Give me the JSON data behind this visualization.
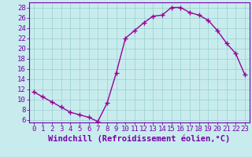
{
  "x": [
    0,
    1,
    2,
    3,
    4,
    5,
    6,
    7,
    8,
    9,
    10,
    11,
    12,
    13,
    14,
    15,
    16,
    17,
    18,
    19,
    20,
    21,
    22,
    23
  ],
  "y": [
    11.5,
    10.5,
    9.5,
    8.5,
    7.5,
    7.0,
    6.5,
    5.7,
    9.3,
    15.2,
    22.0,
    23.5,
    25.0,
    26.3,
    26.5,
    28.0,
    28.0,
    27.0,
    26.5,
    25.5,
    23.5,
    21.0,
    19.0,
    14.8
  ],
  "line_color": "#990099",
  "marker": "+",
  "marker_size": 4,
  "marker_lw": 1.0,
  "line_width": 1.0,
  "bg_color": "#c8eced",
  "grid_color": "#a0d4d4",
  "xlabel": "Windchill (Refroidissement éolien,°C)",
  "xlim": [
    -0.5,
    23.5
  ],
  "ylim": [
    5.5,
    29
  ],
  "yticks": [
    6,
    8,
    10,
    12,
    14,
    16,
    18,
    20,
    22,
    24,
    26,
    28
  ],
  "xticks": [
    0,
    1,
    2,
    3,
    4,
    5,
    6,
    7,
    8,
    9,
    10,
    11,
    12,
    13,
    14,
    15,
    16,
    17,
    18,
    19,
    20,
    21,
    22,
    23
  ],
  "spine_color": "#7700aa",
  "tick_color": "#7700aa",
  "label_color": "#7700aa",
  "font_size": 6.5,
  "xlabel_font_size": 7.5
}
